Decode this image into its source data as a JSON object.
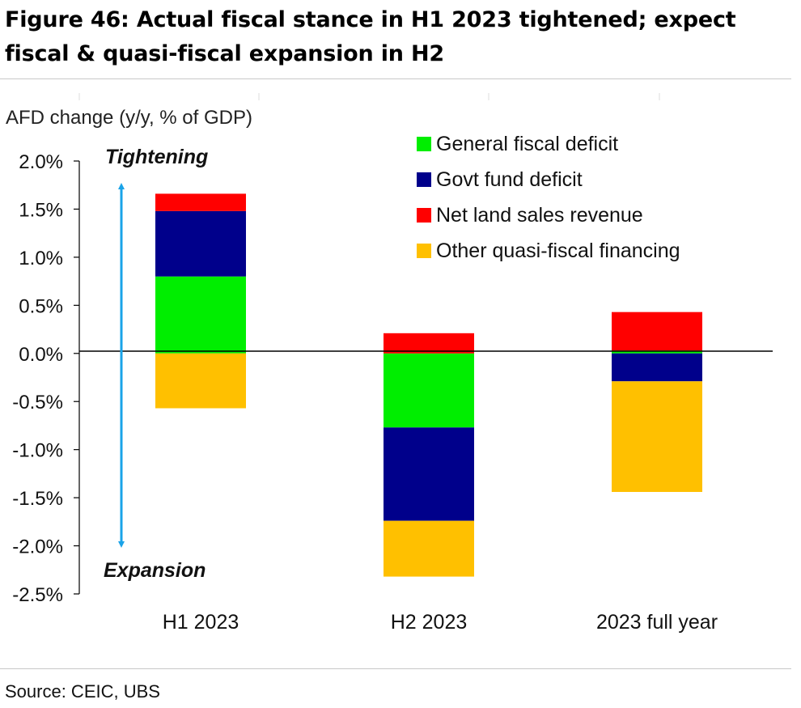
{
  "title": "Figure 46: Actual fiscal stance in H1 2023 tightened; expect fiscal & quasi-fiscal expansion in H2",
  "source": "Source: CEIC, UBS",
  "chart_data": {
    "type": "bar",
    "stacked": true,
    "ylabel": "AFD change (y/y, % of GDP)",
    "categories": [
      "H1 2023",
      "H2 2023",
      "2023 full year"
    ],
    "y_ticks": [
      "2.0%",
      "1.5%",
      "1.0%",
      "0.5%",
      "0.0%",
      "-0.5%",
      "-1.0%",
      "-1.5%",
      "-2.0%",
      "-2.5%"
    ],
    "ylim": [
      -2.5,
      2.0
    ],
    "grid": false,
    "legend_position": "top-right",
    "series": [
      {
        "name": "General fiscal deficit",
        "color": "#00ee00",
        "values": [
          0.8,
          -0.77,
          0.03
        ]
      },
      {
        "name": "Govt fund deficit",
        "color": "#00008b",
        "values": [
          0.68,
          -0.97,
          -0.29
        ]
      },
      {
        "name": "Net land sales revenue",
        "color": "#ff0000",
        "values": [
          0.18,
          0.21,
          0.4
        ]
      },
      {
        "name": "Other quasi-fiscal financing",
        "color": "#ffc000",
        "values": [
          -0.57,
          -0.58,
          -1.15
        ]
      }
    ],
    "annotations": {
      "top": "Tightening",
      "bottom": "Expansion",
      "arrow_color": "#1aa3e8"
    }
  }
}
